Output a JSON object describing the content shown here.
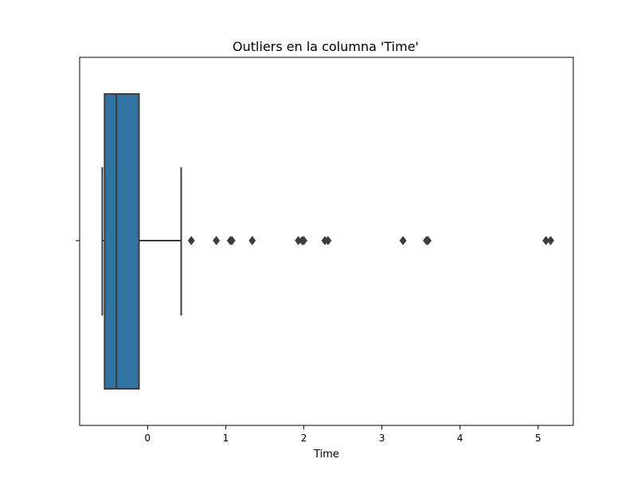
{
  "chart_data": {
    "type": "box",
    "title": "Outliers en la columna 'Time'",
    "xlabel": "Time",
    "ylabel": "",
    "xlim": [
      -0.87,
      5.45
    ],
    "xticks": [
      0,
      1,
      2,
      3,
      4,
      5
    ],
    "xtick_labels": [
      "0",
      "1",
      "2",
      "3",
      "4",
      "5"
    ],
    "box": {
      "whisker_low": -0.58,
      "q1": -0.55,
      "median": -0.4,
      "q3": -0.11,
      "whisker_high": 0.43
    },
    "outliers": [
      0.56,
      0.88,
      1.06,
      1.08,
      1.34,
      1.93,
      1.98,
      2.0,
      2.27,
      2.31,
      3.27,
      3.57,
      3.59,
      5.1,
      5.16
    ],
    "box_color": "#3274a1",
    "line_color": "#3d3d3d",
    "grid": false,
    "legend": "none"
  }
}
